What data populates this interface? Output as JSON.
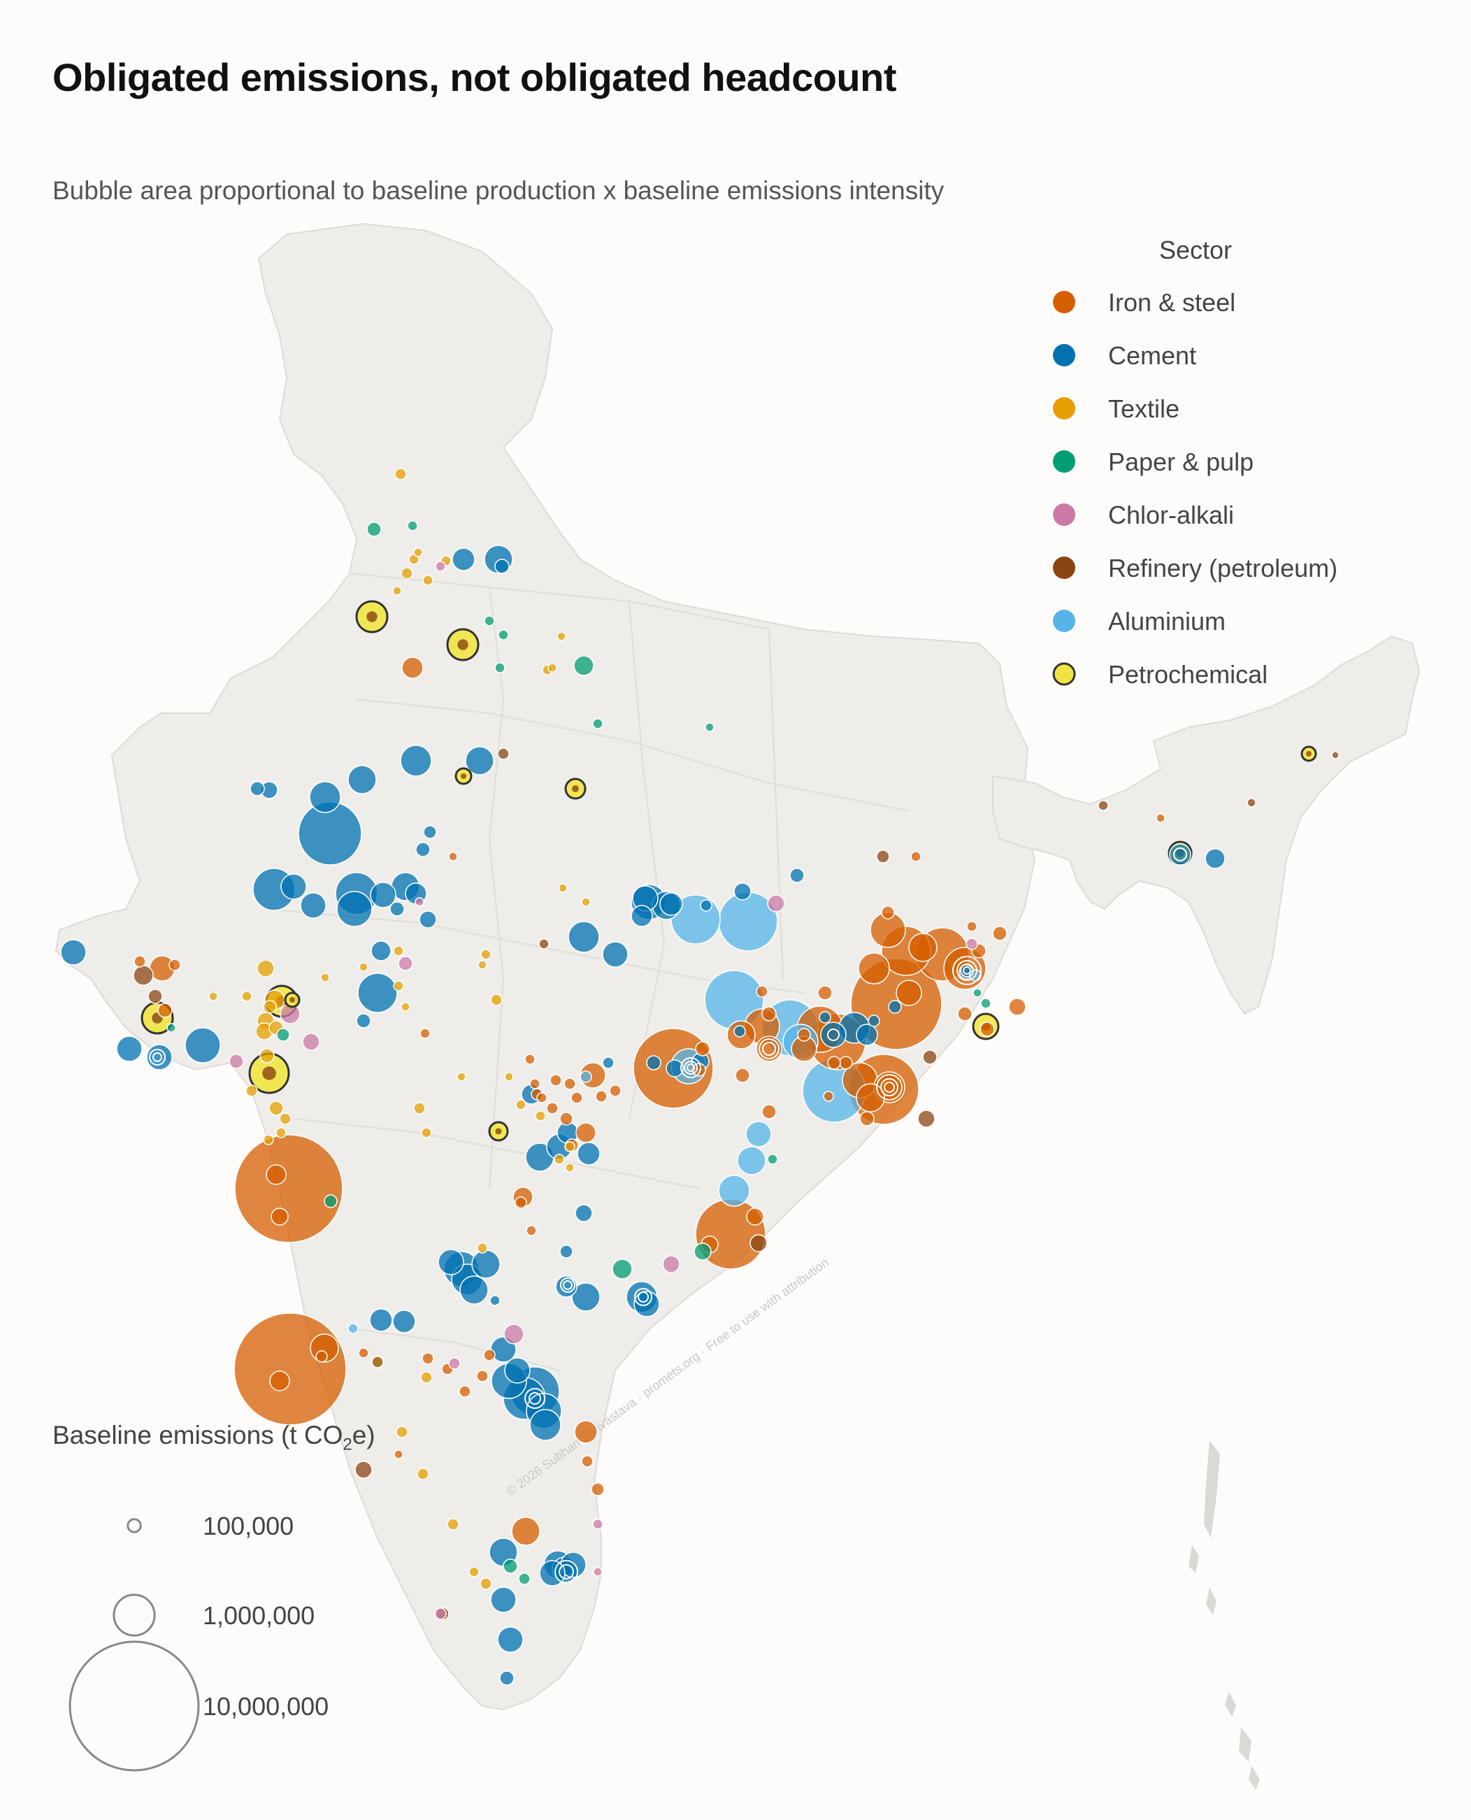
{
  "title": "Obligated emissions, not obligated headcount",
  "subtitle": "Bubble area proportional to baseline production x baseline emissions intensity",
  "sector_legend": {
    "title": "Sector",
    "items": [
      {
        "label": "Iron & steel",
        "color": "#d55e00"
      },
      {
        "label": "Cement",
        "color": "#0072b2"
      },
      {
        "label": "Textile",
        "color": "#e69f00"
      },
      {
        "label": "Paper & pulp",
        "color": "#009e73"
      },
      {
        "label": "Chlor-alkali",
        "color": "#cc79a7"
      },
      {
        "label": "Refinery (petroleum)",
        "color": "#8b4513"
      },
      {
        "label": "Aluminium",
        "color": "#56b4e9"
      },
      {
        "label": "Petrochemical",
        "color": "#f0e442",
        "outline": "#333333"
      }
    ]
  },
  "size_legend": {
    "title_prefix": "Baseline emissions (t CO",
    "title_sub": "2",
    "title_suffix": "e)",
    "items": [
      {
        "label": "100,000",
        "value": 100000
      },
      {
        "label": "1,000,000",
        "value": 1000000
      },
      {
        "label": "10,000,000",
        "value": 10000000
      }
    ]
  },
  "watermark": "© 2026 Subhan Shrivastava · promets.org · Free to use with attribution",
  "chart_data": {
    "type": "bubble-map",
    "region": "India",
    "size_encoding": "area proportional to baseline emissions (t CO2e)",
    "approximate_facilities": [
      {
        "sector": "Iron & steel",
        "location": "Jamnagar / Gujarat coast",
        "emissions": 5000000
      },
      {
        "sector": "Iron & steel",
        "location": "Raigad / Maharashtra coast",
        "emissions": 6500000
      },
      {
        "sector": "Iron & steel",
        "location": "Bellary / Karnataka",
        "emissions": 9000000
      },
      {
        "sector": "Iron & steel",
        "location": "Chhattisgarh",
        "emissions": 5500000
      },
      {
        "sector": "Iron & steel",
        "location": "Jharkhand",
        "emissions": 9000000
      },
      {
        "sector": "Iron & steel",
        "location": "Odisha",
        "emissions": 6500000
      },
      {
        "sector": "Iron & steel",
        "location": "Visakhapatnam",
        "emissions": 3900000
      },
      {
        "sector": "Aluminium",
        "location": "Odisha",
        "emissions": 3300000
      },
      {
        "sector": "Aluminium",
        "location": "Uttar Pradesh",
        "emissions": 1700000
      },
      {
        "sector": "Cement",
        "location": "Rajasthan",
        "emissions": 2700000
      },
      {
        "sector": "Petrochemical",
        "location": "Jamnagar",
        "emissions": 700000
      }
    ]
  }
}
